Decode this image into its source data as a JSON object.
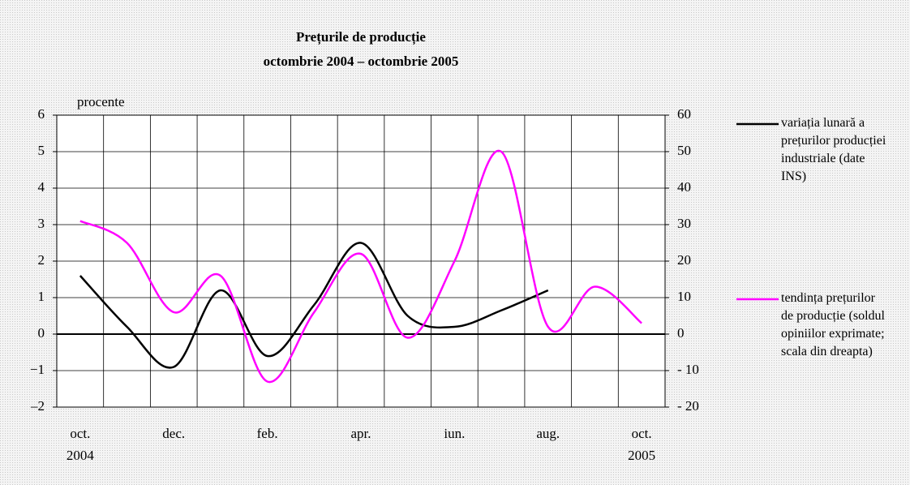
{
  "chart_data": {
    "type": "line",
    "title": "Prețurile de producție",
    "subtitle": "octombrie 2004 – octombrie 2005",
    "y_label": "procente",
    "categories": [
      "oct.",
      null,
      "dec.",
      null,
      "feb.",
      null,
      "apr.",
      null,
      "iun.",
      null,
      "aug.",
      null,
      "oct."
    ],
    "year_labels": [
      "2004",
      "2005"
    ],
    "series": [
      {
        "name": "variația lunară a prețurilor producției industriale (date INS)",
        "color": "#000000",
        "values": [
          1.6,
          0.2,
          -0.9,
          1.2,
          -0.6,
          0.8,
          2.5,
          0.5,
          0.2,
          0.65,
          1.2,
          null,
          null
        ]
      },
      {
        "name": "tendința prețurilor de producție (soldul opiniilor exprimate; scala din dreapta)",
        "color": "#ff00ff",
        "axis": "y2",
        "values": [
          31,
          25,
          6,
          16,
          -13,
          6,
          22,
          -1,
          20,
          50,
          2,
          13,
          3
        ]
      }
    ],
    "ylim": [
      -2,
      6
    ],
    "yticks": [
      {
        "value": -2,
        "label": "–2"
      },
      {
        "value": -1,
        "label": "−1"
      },
      0,
      1,
      2,
      3,
      4,
      5,
      6
    ],
    "y2lim": [
      -20,
      60
    ],
    "y2ticks": [
      {
        "value": -20,
        "label": "- 20"
      },
      {
        "value": -10,
        "label": "- 10"
      },
      0,
      10,
      20,
      30,
      40,
      50,
      60
    ],
    "grid": true
  }
}
